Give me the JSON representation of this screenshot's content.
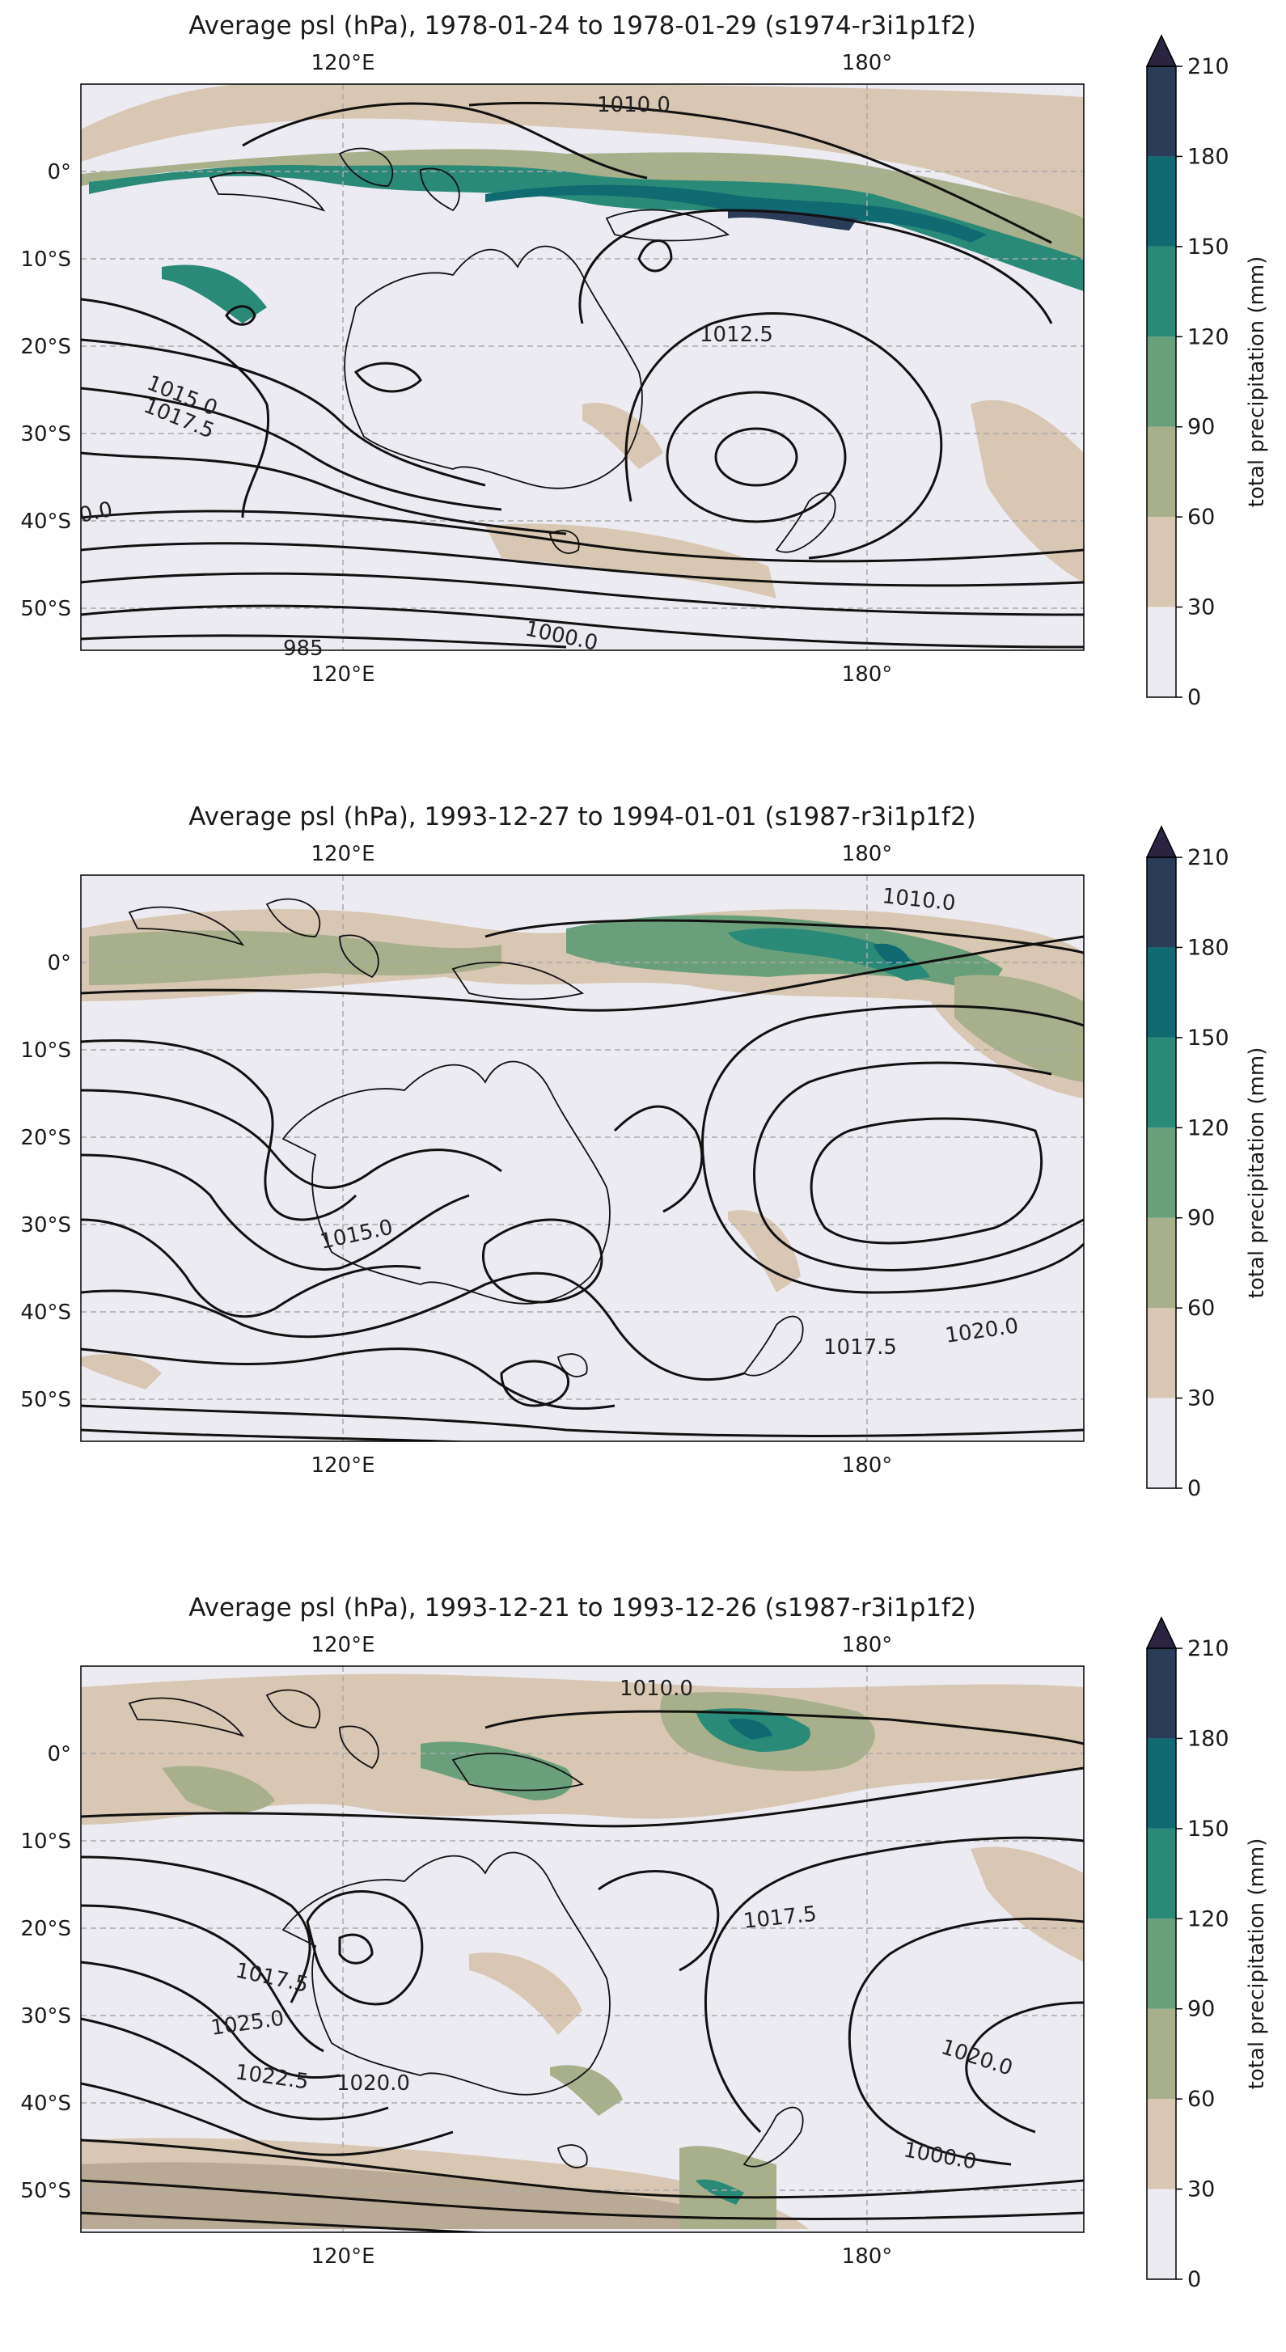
{
  "panels": [
    {
      "title": "Average psl (hPa), 1978-01-24 to 1978-01-29 (s1974-r3i1p1f2)",
      "contour_labels": [
        "1010.0",
        "1012.5",
        "1015.0",
        "1017.5",
        "0.0",
        "1000.0",
        "985"
      ]
    },
    {
      "title": "Average psl (hPa), 1993-12-27 to 1994-01-01 (s1987-r3i1p1f2)",
      "contour_labels": [
        "1010.0",
        "1015.0",
        "1017.5",
        "1020.0"
      ]
    },
    {
      "title": "Average psl (hPa), 1993-12-21 to 1993-12-26 (s1987-r3i1p1f2)",
      "contour_labels": [
        "1010.0",
        "1017.5",
        "1017.5",
        "1025.0",
        "1022.5",
        "1020.0",
        "1020.0",
        "1000.0"
      ]
    }
  ],
  "axes": {
    "lon_ticks": [
      "120°E",
      "180°"
    ],
    "lat_ticks": [
      "0°",
      "10°S",
      "20°S",
      "30°S",
      "40°S",
      "50°S"
    ]
  },
  "colorbar": {
    "label": "total precipitation (mm)",
    "ticks": [
      "0",
      "30",
      "60",
      "90",
      "120",
      "150",
      "180",
      "210"
    ],
    "colors": [
      "#ecebf2",
      "#d8c7b2",
      "#a7b08a",
      "#6a9f7c",
      "#2a8a78",
      "#0f6a72",
      "#2a3c58"
    ],
    "extend_color": "#2a2440"
  },
  "colors": {
    "ocean_bg": "#ecebf2",
    "contour": "#111111",
    "grid": "#999999"
  }
}
